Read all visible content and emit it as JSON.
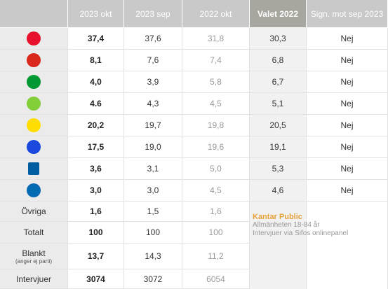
{
  "header": [
    "2023 okt",
    "2023 sep",
    "2022 okt",
    "Valet 2022",
    "Sign. mot sep 2023"
  ],
  "party_rows": [
    [
      "37,4",
      "37,6",
      "31,8",
      "30,3",
      "Nej"
    ],
    [
      "8,1",
      "7,6",
      "7,4",
      "6,8",
      "Nej"
    ],
    [
      "4,0",
      "3,9",
      "5,8",
      "6,7",
      "Nej"
    ],
    [
      "4.6",
      "4,3",
      "4,5",
      "5,1",
      "Nej"
    ],
    [
      "20,2",
      "19,7",
      "19,8",
      "20,5",
      "Nej"
    ],
    [
      "17,5",
      "19,0",
      "19,6",
      "19,1",
      "Nej"
    ],
    [
      "3,6",
      "3,1",
      "5,0",
      "5,3",
      "Nej"
    ],
    [
      "3,0",
      "3,0",
      "4,5",
      "4,6",
      "Nej"
    ]
  ],
  "other_rows": [
    {
      "label": "Övriga",
      "values": [
        "1,6",
        "1,5",
        "1,6"
      ]
    },
    {
      "label": "Totalt",
      "values": [
        "100",
        "100",
        "100"
      ]
    },
    {
      "label": "Blankt",
      "sublabel": "(anger ej parti)",
      "values": [
        "13,7",
        "14,3",
        "11,2"
      ]
    },
    {
      "label": "Intervjuer",
      "values": [
        "3074",
        "3072",
        "6054"
      ]
    }
  ],
  "note": {
    "title": "Kantar Public",
    "lines": [
      "Allmänheten 18-84 år",
      "Intervjuer via Sifos onlinepanel"
    ]
  }
}
